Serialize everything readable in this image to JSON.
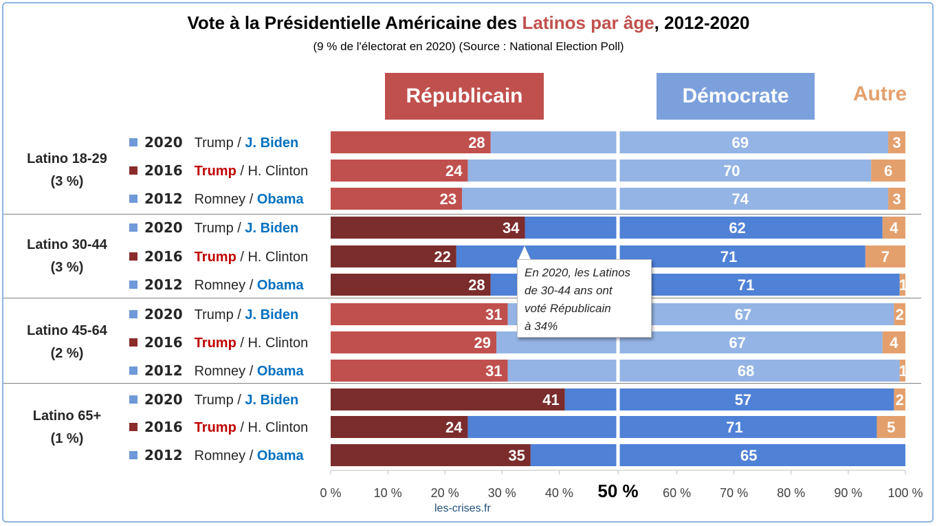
{
  "title": {
    "pre": "Vote à la Présidentielle Américaine des ",
    "highlight": "Latinos par âge",
    "post": ", 2012-2020"
  },
  "subtitle": "(9 % de l'électorat en 2020) (Source : National Election Poll)",
  "headers": {
    "republican": "Républicain",
    "democrat": "Démocrate",
    "other": "Autre"
  },
  "callout": {
    "lines": [
      "En 2020, les Latinos",
      "de 30-44 ans ont",
      "voté Républicain",
      "à 34%"
    ]
  },
  "source": "les-crises.fr",
  "colors": {
    "rep_light": "#c0504d",
    "rep_dark": "#7b2c2c",
    "dem_light": "#93b4e4",
    "dem_dark": "#4f81d6",
    "other": "#e3a06d",
    "swatch_blue": "#6f99d8",
    "swatch_red": "#8b2c2c"
  },
  "groups": [
    {
      "label_line1": "Latino 18-29",
      "label_line2": "(3 %)"
    },
    {
      "label_line1": "Latino 30-44",
      "label_line2": "(3 %)"
    },
    {
      "label_line1": "Latino 45-64",
      "label_line2": "(2 %)"
    },
    {
      "label_line1": "Latino 65+",
      "label_line2": "(1 %)"
    }
  ],
  "chart_data": {
    "type": "bar",
    "orientation": "horizontal-stacked",
    "xlim": [
      0,
      100
    ],
    "xticks": [
      "0 %",
      "10 %",
      "20 %",
      "30 %",
      "40 %",
      "50 %",
      "60 %",
      "70 %",
      "80 %",
      "90 %",
      "100 %"
    ],
    "rows": [
      {
        "group": 0,
        "year": "2020",
        "rep_cand": "Trump",
        "dem_cand": "J. Biden",
        "winner": "dem",
        "rep": 28,
        "dem": 69,
        "other": 3
      },
      {
        "group": 0,
        "year": "2016",
        "rep_cand": "Trump",
        "dem_cand": "H. Clinton",
        "winner": "rep",
        "rep": 24,
        "dem": 70,
        "other": 6
      },
      {
        "group": 0,
        "year": "2012",
        "rep_cand": "Romney",
        "dem_cand": "Obama",
        "winner": "dem",
        "rep": 23,
        "dem": 74,
        "other": 3
      },
      {
        "group": 1,
        "year": "2020",
        "rep_cand": "Trump",
        "dem_cand": "J. Biden",
        "winner": "dem",
        "rep": 34,
        "dem": 62,
        "other": 4
      },
      {
        "group": 1,
        "year": "2016",
        "rep_cand": "Trump",
        "dem_cand": "H. Clinton",
        "winner": "rep",
        "rep": 22,
        "dem": 71,
        "other": 7
      },
      {
        "group": 1,
        "year": "2012",
        "rep_cand": "Romney",
        "dem_cand": "Obama",
        "winner": "dem",
        "rep": 28,
        "dem": 71,
        "other": 1
      },
      {
        "group": 2,
        "year": "2020",
        "rep_cand": "Trump",
        "dem_cand": "J. Biden",
        "winner": "dem",
        "rep": 31,
        "dem": 67,
        "other": 2
      },
      {
        "group": 2,
        "year": "2016",
        "rep_cand": "Trump",
        "dem_cand": "H. Clinton",
        "winner": "rep",
        "rep": 29,
        "dem": 67,
        "other": 4
      },
      {
        "group": 2,
        "year": "2012",
        "rep_cand": "Romney",
        "dem_cand": "Obama",
        "winner": "dem",
        "rep": 31,
        "dem": 68,
        "other": 1
      },
      {
        "group": 3,
        "year": "2020",
        "rep_cand": "Trump",
        "dem_cand": "J. Biden",
        "winner": "dem",
        "rep": 41,
        "dem": 57,
        "other": 2
      },
      {
        "group": 3,
        "year": "2016",
        "rep_cand": "Trump",
        "dem_cand": "H. Clinton",
        "winner": "rep",
        "rep": 24,
        "dem": 71,
        "other": 5
      },
      {
        "group": 3,
        "year": "2012",
        "rep_cand": "Romney",
        "dem_cand": "Obama",
        "winner": "dem",
        "rep": 35,
        "dem": 65,
        "other": 0
      }
    ]
  }
}
